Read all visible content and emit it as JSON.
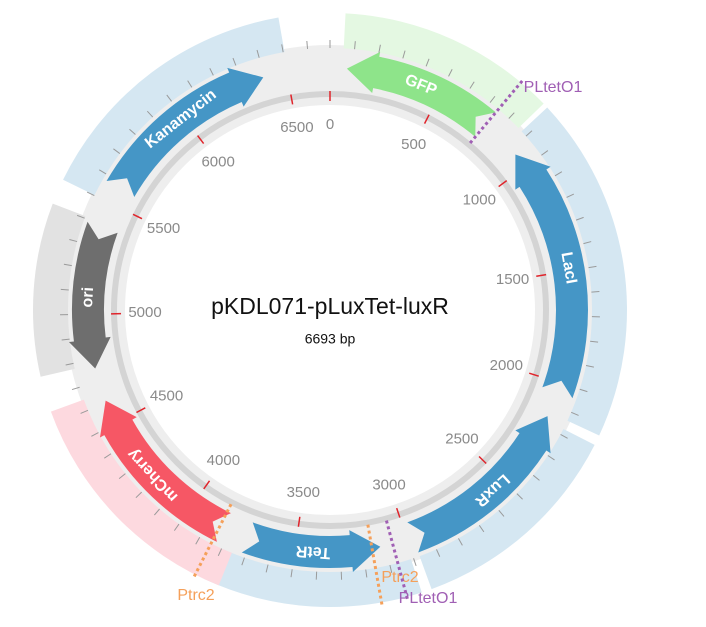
{
  "title": "pKDL071-pLuxTet-luxR",
  "length_label": "6693 bp",
  "features": [
    {
      "label": "GFP"
    },
    {
      "label": "LacI"
    },
    {
      "label": "LuxR"
    },
    {
      "label": "TetR"
    },
    {
      "label": "mCherry"
    },
    {
      "label": "ori"
    },
    {
      "label": "Kanamycin"
    }
  ],
  "sites": [
    {
      "label": "PLtetO1"
    },
    {
      "label": "Ptrc2"
    },
    {
      "label": "Ptrc2"
    },
    {
      "label": "PLtetO1"
    }
  ],
  "ticks": [
    0,
    500,
    1000,
    1500,
    2000,
    2500,
    3000,
    3500,
    4000,
    4500,
    5000,
    5500,
    6000,
    6500
  ]
}
